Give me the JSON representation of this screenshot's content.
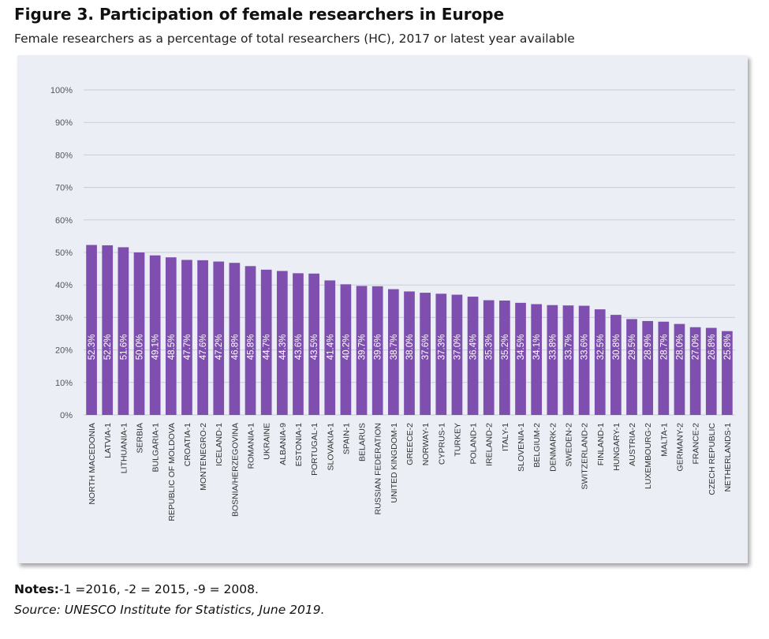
{
  "figure": {
    "title": "Figure 3. Participation of female researchers in Europe",
    "subtitle": "Female researchers as a percentage of total researchers (HC), 2017 or latest year available"
  },
  "notes": {
    "label": "Notes:",
    "text": "-1 =2016, -2 = 2015, -9 = 2008."
  },
  "source": "Source: UNESCO Institute for Statistics, June 2019.",
  "chart_data": {
    "type": "bar",
    "title": "",
    "xlabel": "",
    "ylabel": "",
    "ylim": [
      0,
      100
    ],
    "yticks": [
      "0%",
      "10%",
      "20%",
      "30%",
      "40%",
      "50%",
      "60%",
      "70%",
      "80%",
      "90%",
      "100%"
    ],
    "grid": true,
    "bar_color": "#7f4fb0",
    "background_color": "#eceef6",
    "categories": [
      "NORTH MACEDONIA",
      "LATVIA-1",
      "LITHUANIA-1",
      "SERBIA",
      "BULGARIA-1",
      "REPUBLIC OF MOLDOVA",
      "CROATIA-1",
      "MONTENEGRO-2",
      "ICELAND-1",
      "BOSNIA/HERZEGOVINA",
      "ROMANIA-1",
      "UKRAINE",
      "ALBANIA-9",
      "ESTONIA-1",
      "PORTUGAL-1",
      "SLOVAKIA-1",
      "SPAIN-1",
      "BELARUS",
      "RUSSIAN FEDERATION",
      "UNITED KINGDOM-1",
      "GREECE-2",
      "NORWAY-1",
      "CYPRUS-1",
      "TURKEY",
      "POLAND-1",
      "IRELAND-2",
      "ITALY-1",
      "SLOVENIA-1",
      "BELGIUM-2",
      "DENMARK-2",
      "SWEDEN-2",
      "SWITZERLAND-2",
      "FINLAND-1",
      "HUNGARY-1",
      "AUSTRIA-2",
      "LUXEMBOURG-2",
      "MALTA-1",
      "GERMANY-2",
      "FRANCE-2",
      "CZECH REPUBLIC",
      "NETHERLANDS-1"
    ],
    "values": [
      52.3,
      52.2,
      51.6,
      50.0,
      49.1,
      48.5,
      47.7,
      47.6,
      47.2,
      46.8,
      45.8,
      44.7,
      44.3,
      43.6,
      43.5,
      41.4,
      40.2,
      39.7,
      39.6,
      38.7,
      38.0,
      37.6,
      37.3,
      37.0,
      36.4,
      35.3,
      35.2,
      34.5,
      34.1,
      33.8,
      33.7,
      33.6,
      32.5,
      30.8,
      29.5,
      28.9,
      28.7,
      28.0,
      27.0,
      26.8,
      25.8
    ],
    "data_labels": [
      "52.3%",
      "52.2%",
      "51.6%",
      "50.0%",
      "49.1%",
      "48.5%",
      "47.7%",
      "47.6%",
      "47.2%",
      "46.8%",
      "45.8%",
      "44.7%",
      "44.3%",
      "43.6%",
      "43.5%",
      "41.4%",
      "40.2%",
      "39.7%",
      "39.6%",
      "38.7%",
      "38.0%",
      "37.6%",
      "37.3%",
      "37.0%",
      "36.4%",
      "35.3%",
      "35.2%",
      "34.5%",
      "34.1%",
      "33.8%",
      "33.7%",
      "33.6%",
      "32.5%",
      "30.8%",
      "29.5%",
      "28.9%",
      "28.7%",
      "28.0%",
      "27.0%",
      "26.8%",
      "25.8%"
    ]
  }
}
